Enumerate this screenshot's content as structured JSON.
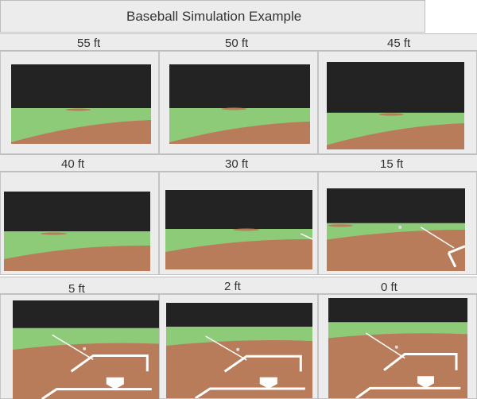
{
  "title": "Baseball Simulation Example",
  "panels": [
    {
      "label": "55 ft",
      "distance_ft": 55
    },
    {
      "label": "50 ft",
      "distance_ft": 50
    },
    {
      "label": "45 ft",
      "distance_ft": 45
    },
    {
      "label": "40 ft",
      "distance_ft": 40
    },
    {
      "label": "30 ft",
      "distance_ft": 30
    },
    {
      "label": "15 ft",
      "distance_ft": 15
    },
    {
      "label": "5 ft",
      "distance_ft": 5
    },
    {
      "label": "2 ft",
      "distance_ft": 2
    },
    {
      "label": "0 ft",
      "distance_ft": 0
    }
  ],
  "colors": {
    "sky": "#232323",
    "grass": "#8ecb78",
    "dirt": "#b97c5a",
    "line": "#ffffff",
    "panel_bg": "#ececec"
  }
}
